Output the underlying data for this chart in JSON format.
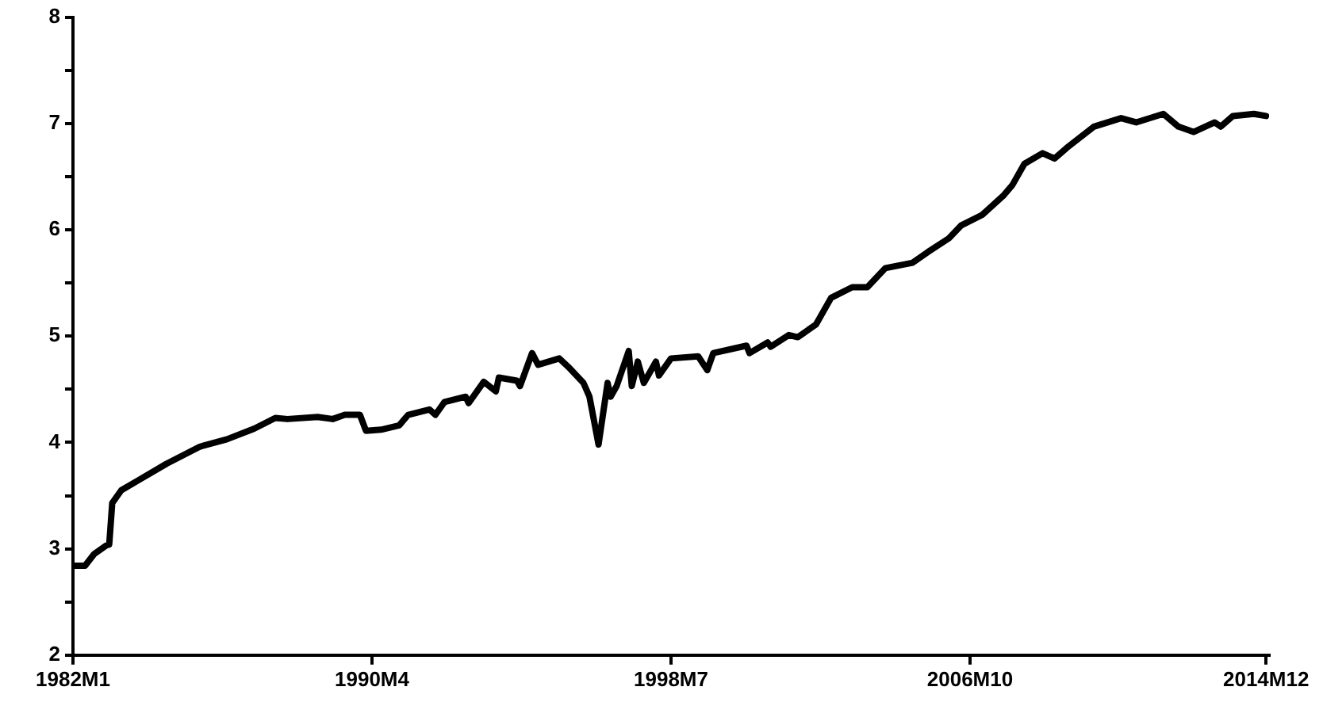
{
  "chart_data": {
    "type": "line",
    "x": [
      "1982-01",
      "1982-05",
      "1982-08",
      "1982-12",
      "1983-01",
      "1983-02",
      "1983-05",
      "1983-11",
      "1984-08",
      "1985-07",
      "1986-04",
      "1987-01",
      "1987-08",
      "1987-12",
      "1988-10",
      "1989-03",
      "1989-07",
      "1989-12",
      "1990-02",
      "1990-07",
      "1991-01",
      "1991-04",
      "1991-11",
      "1992-01",
      "1992-04",
      "1992-11",
      "1992-12",
      "1993-05",
      "1993-09",
      "1993-10",
      "1994-04",
      "1994-05",
      "1994-09",
      "1994-11",
      "1995-06",
      "1995-09",
      "1996-02",
      "1996-04",
      "1996-07",
      "1996-10",
      "1996-11",
      "1997-01",
      "1997-05",
      "1997-06",
      "1997-08",
      "1997-10",
      "1998-02",
      "1998-03",
      "1998-07",
      "1999-04",
      "1999-07",
      "1999-09",
      "2000-08",
      "2000-09",
      "2001-03",
      "2001-04",
      "2001-10",
      "2002-01",
      "2002-07",
      "2002-12",
      "2003-07",
      "2003-12",
      "2004-06",
      "2005-03",
      "2005-08",
      "2006-03",
      "2006-07",
      "2007-02",
      "2007-09",
      "2007-12",
      "2008-04",
      "2008-10",
      "2009-02",
      "2009-06",
      "2010-03",
      "2010-12",
      "2011-05",
      "2012-02",
      "2012-07",
      "2012-12",
      "2013-07",
      "2013-09",
      "2014-01",
      "2014-08",
      "2014-12"
    ],
    "series": [
      {
        "color": "#000000",
        "values": [
          2.84,
          2.84,
          2.95,
          3.03,
          3.04,
          3.43,
          3.55,
          3.65,
          3.8,
          3.96,
          4.03,
          4.13,
          4.23,
          4.22,
          4.24,
          4.22,
          4.26,
          4.26,
          4.11,
          4.12,
          4.16,
          4.26,
          4.31,
          4.26,
          4.38,
          4.43,
          4.37,
          4.57,
          4.48,
          4.61,
          4.58,
          4.53,
          4.84,
          4.73,
          4.79,
          4.71,
          4.56,
          4.43,
          3.98,
          4.56,
          4.43,
          4.53,
          4.86,
          4.53,
          4.76,
          4.56,
          4.76,
          4.63,
          4.79,
          4.81,
          4.68,
          4.84,
          4.91,
          4.84,
          4.94,
          4.9,
          5.01,
          4.99,
          5.11,
          5.36,
          5.46,
          5.46,
          5.64,
          5.69,
          5.79,
          5.92,
          6.04,
          6.14,
          6.32,
          6.42,
          6.62,
          6.72,
          6.67,
          6.77,
          6.97,
          7.05,
          7.01,
          7.09,
          6.97,
          6.92,
          7.01,
          6.97,
          7.07,
          7.09,
          7.07
        ]
      }
    ],
    "xlim": [
      "1982-01",
      "2015-01"
    ],
    "xticks": [
      {
        "value": "1982-01",
        "label": "1982M1"
      },
      {
        "value": "1990-04",
        "label": "1990M4"
      },
      {
        "value": "1998-07",
        "label": "1998M7"
      },
      {
        "value": "2006-10",
        "label": "2006M10"
      },
      {
        "value": "2014-12",
        "label": "2014M12"
      }
    ],
    "ylim": [
      2,
      8
    ],
    "yticks": [
      2,
      {
        "value": 2.5,
        "label": null
      },
      3,
      {
        "value": 3.5,
        "label": null
      },
      4,
      {
        "value": 4.5,
        "label": null
      },
      5,
      {
        "value": 5.5,
        "label": null
      },
      6,
      {
        "value": 6.5,
        "label": null
      },
      7,
      {
        "value": 7.5,
        "label": null
      },
      8
    ],
    "grid": false,
    "legend": false,
    "marker": "none",
    "line_style": "solid"
  }
}
